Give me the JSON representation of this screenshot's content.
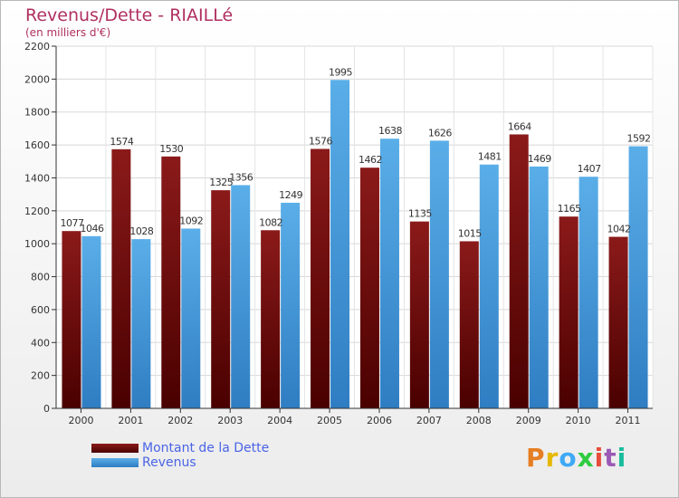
{
  "header": {
    "title": "Revenus/Dette - RIAILLé",
    "subtitle": "(en milliers d'€)"
  },
  "legend": {
    "dette": "Montant de la Dette",
    "revenus": "Revenus"
  },
  "brand": {
    "text": "Proxiti",
    "colors": [
      "#e67e22",
      "#e6b800",
      "#3fa9f5",
      "#2ecc40",
      "#e74c3c",
      "#9b59b6",
      "#1abc9c"
    ]
  },
  "colors": {
    "dette": "#8b1a1a",
    "dette_dark": "#4a0000",
    "revenus": "#5aaee8",
    "revenus_dark": "#2f7dc2",
    "title": "#b03060",
    "legend_text": "#4a64e6"
  },
  "chart_data": {
    "type": "bar",
    "title": "Revenus/Dette - RIAILLé",
    "subtitle": "(en milliers d'€)",
    "categories": [
      "2000",
      "2001",
      "2002",
      "2003",
      "2004",
      "2005",
      "2006",
      "2007",
      "2008",
      "2009",
      "2010",
      "2011"
    ],
    "series": [
      {
        "name": "Montant de la Dette",
        "values": [
          1077,
          1574,
          1530,
          1325,
          1082,
          1576,
          1462,
          1135,
          1015,
          1664,
          1165,
          1042
        ]
      },
      {
        "name": "Revenus",
        "values": [
          1046,
          1028,
          1092,
          1356,
          1249,
          1995,
          1638,
          1626,
          1481,
          1469,
          1407,
          1592
        ]
      }
    ],
    "ylim": [
      0,
      2200
    ],
    "yticks": [
      0,
      200,
      400,
      600,
      800,
      1000,
      1200,
      1400,
      1600,
      1800,
      2000,
      2200
    ],
    "grid": true,
    "legend_position": "bottom-left"
  }
}
